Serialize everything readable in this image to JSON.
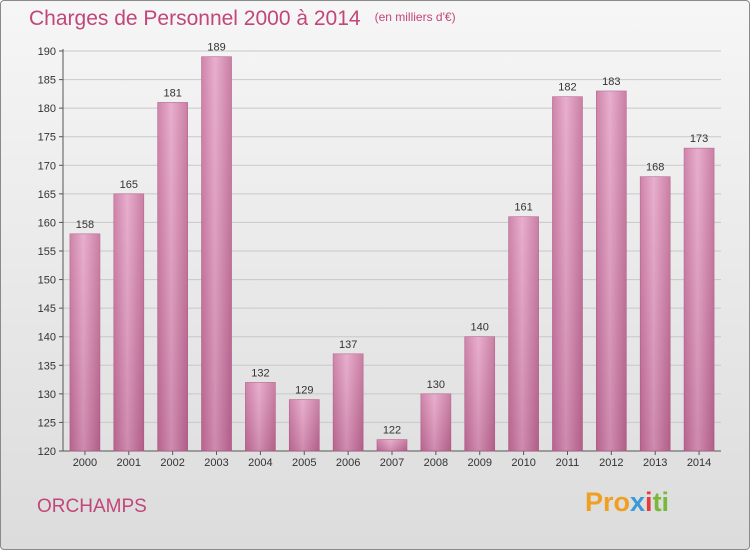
{
  "chart_data": {
    "type": "bar",
    "title": "Charges de Personnel 2000 à 2014",
    "subtitle": "(en milliers d'€)",
    "categories": [
      "2000",
      "2001",
      "2002",
      "2003",
      "2004",
      "2005",
      "2006",
      "2007",
      "2008",
      "2009",
      "2010",
      "2011",
      "2012",
      "2013",
      "2014"
    ],
    "values": [
      158,
      165,
      181,
      189,
      132,
      129,
      137,
      122,
      130,
      140,
      161,
      182,
      183,
      168,
      173
    ],
    "ylim": [
      120,
      190
    ],
    "yticks": [
      120,
      125,
      130,
      135,
      140,
      145,
      150,
      155,
      160,
      165,
      170,
      175,
      180,
      185,
      190
    ],
    "grid": true,
    "colors": {
      "bar": "#d884b0",
      "bar_dark": "#b7628f",
      "title": "#c1467a"
    }
  },
  "footer": {
    "commune": "ORCHAMPS",
    "logo": {
      "p1": "Pro",
      "p2": "x",
      "p3": "i",
      "p4": "ti"
    }
  }
}
